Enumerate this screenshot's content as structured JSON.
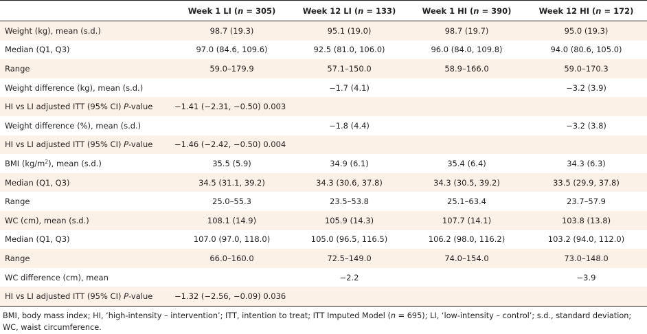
{
  "header": {
    "week1_li": {
      "week": "Week 1 LI",
      "n_label": "n",
      "n_value": " = 305"
    },
    "week12_li": {
      "week": "Week 12 LI",
      "n_label": "n",
      "n_value": " = 133"
    },
    "week1_hi": {
      "week": "Week 1 HI",
      "n_label": "n",
      "n_value": " = 390"
    },
    "week12_hi": {
      "week": "Week 12 HI",
      "n_label": "n",
      "n_value": " = 172"
    }
  },
  "rows": [
    {
      "label": "Weight (kg), mean (s.d.)",
      "values": [
        "98.7 (19.3)",
        "95.1 (19.0)",
        "98.7 (19.7)",
        "95.0 (19.3)"
      ]
    },
    {
      "label": "Median (Q1, Q3)",
      "values": [
        "97.0 (84.6, 109.6)",
        "92.5 (81.0, 106.0)",
        "96.0 (84.0, 109.8)",
        "94.0 (80.6, 105.0)"
      ]
    },
    {
      "label": "Range",
      "values": [
        "59.0–179.9",
        "57.1–150.0",
        "58.9–166.0",
        "59.0–170.3"
      ]
    },
    {
      "label": "Weight difference (kg), mean (s.d.)",
      "values": [
        "",
        "−1.7 (4.1)",
        "",
        "−3.2 (3.9)"
      ]
    },
    {
      "label_pre": "HI vs LI adjusted ITT (95% CI) ",
      "label_italic": "P",
      "label_post": "-value",
      "span_value": "−1.41 (−2.31, −0.50) 0.003"
    },
    {
      "label": "Weight difference (%), mean (s.d.)",
      "values": [
        "",
        "−1.8 (4.4)",
        "",
        "−3.2 (3.8)"
      ]
    },
    {
      "label_pre": "HI vs LI adjusted ITT (95% CI) ",
      "label_italic": "P",
      "label_post": "-value",
      "span_value": "−1.46 (−2.42, −0.50) 0.004"
    },
    {
      "label_pre": "BMI (kg/m",
      "label_sup": "2",
      "label_post": "), mean (s.d.)",
      "values": [
        "35.5 (5.9)",
        "34.9 (6.1)",
        "35.4 (6.4)",
        "34.3 (6.3)"
      ]
    },
    {
      "label": "Median (Q1, Q3)",
      "values": [
        "34.5 (31.1, 39.2)",
        "34.3 (30.6, 37.8)",
        "34.3 (30.5, 39.2)",
        "33.5 (29.9, 37.8)"
      ]
    },
    {
      "label": "Range",
      "values": [
        "25.0–55.3",
        "23.5–53.8",
        "25.1–63.4",
        "23.7–57.9"
      ]
    },
    {
      "label": "WC (cm), mean (s.d.)",
      "values": [
        "108.1 (14.9)",
        "105.9 (14.3)",
        "107.7 (14.1)",
        "103.8 (13.8)"
      ]
    },
    {
      "label": "Median (Q1, Q3)",
      "values": [
        "107.0 (97.0, 118.0)",
        "105.0 (96.5, 116.5)",
        "106.2 (98.0, 116.2)",
        "103.2 (94.0, 112.0)"
      ]
    },
    {
      "label": "Range",
      "values": [
        "66.0–160.0",
        "72.5–149.0",
        "74.0–154.0",
        "73.0–148.0"
      ]
    },
    {
      "label": "WC difference (cm), mean",
      "values": [
        "",
        "−2.2",
        "",
        "−3.9"
      ]
    },
    {
      "label_pre": "HI vs LI adjusted ITT (95% CI) ",
      "label_italic": "P",
      "label_post": "-value",
      "span_value": "−1.32 (−2.56, −0.09) 0.036"
    }
  ],
  "footnote": {
    "pre": "BMI, body mass index; HI, ‘high-intensity – intervention’; ITT, intention to treat; ITT Imputed Model (",
    "n": "n",
    "post": " = 695); LI, ‘low-intensity – control’; s.d., standard deviation; WC, waist circumference."
  },
  "colors": {
    "row_shade": "#fcf1e6",
    "text": "#231f20",
    "rule": "#231f20"
  }
}
